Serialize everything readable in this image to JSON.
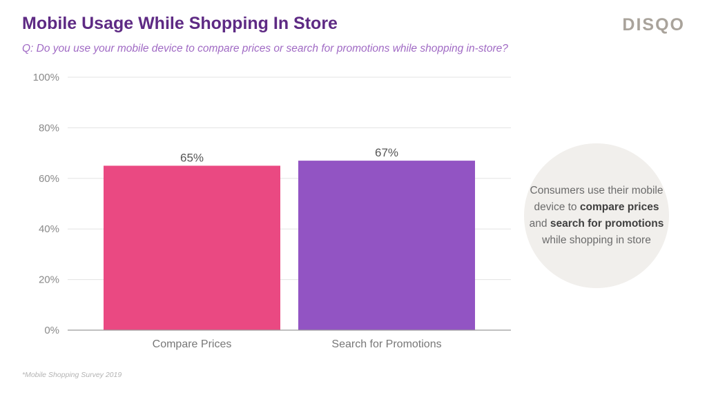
{
  "header": {
    "title": "Mobile Usage While Shopping In Store",
    "subtitle": "Q: Do you use your mobile device to compare prices or search for promotions while shopping in-store?",
    "logo": "DISQO"
  },
  "callout": {
    "text_1": "Consumers use their mobile device to ",
    "bold_1": "compare prices",
    "text_2": " and ",
    "bold_2": "search for promotions",
    "text_3": " while shopping in store"
  },
  "footnote": "*Mobile Shopping Survey 2019",
  "chart_data": {
    "type": "bar",
    "categories": [
      "Compare Prices",
      "Search for Promotions"
    ],
    "values": [
      65,
      67
    ],
    "value_labels": [
      "65%",
      "67%"
    ],
    "colors": [
      "#ea4982",
      "#9254c3"
    ],
    "yticks": [
      "0%",
      "20%",
      "40%",
      "60%",
      "80%",
      "100%"
    ],
    "ylim": [
      0,
      100
    ],
    "grid": true,
    "xlabel": "",
    "ylabel": ""
  }
}
